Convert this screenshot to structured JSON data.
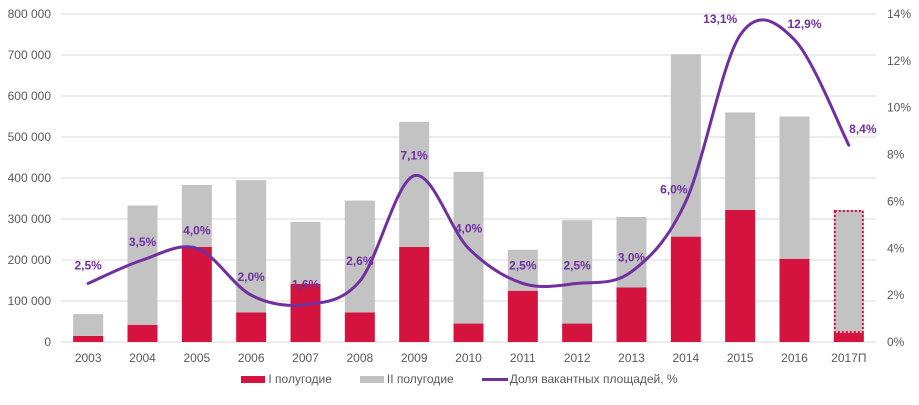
{
  "chart_data": {
    "type": "bar",
    "subtype": "stacked-bar-with-line-secondary-axis",
    "title": "",
    "xlabel": "",
    "ylabel": "",
    "y2label": "",
    "categories": [
      "2003",
      "2004",
      "2005",
      "2006",
      "2007",
      "2008",
      "2009",
      "2010",
      "2011",
      "2012",
      "2013",
      "2014",
      "2015",
      "2016",
      "2017П"
    ],
    "series": [
      {
        "name": "I полугодие",
        "type": "bar",
        "axis": "left",
        "color": "#d4133f",
        "values": [
          15000,
          42000,
          232000,
          72000,
          142000,
          72000,
          232000,
          45000,
          125000,
          45000,
          133000,
          257000,
          322000,
          203000,
          22000
        ]
      },
      {
        "name": "II полугодие",
        "type": "bar",
        "axis": "left",
        "color": "#c3c3c3",
        "values": [
          53000,
          291000,
          151000,
          323000,
          151000,
          273000,
          305000,
          370000,
          100000,
          252000,
          172000,
          445000,
          238000,
          347000,
          300000
        ]
      },
      {
        "name": "Доля вакантных площадей, %",
        "type": "line",
        "axis": "right",
        "color": "#7030a0",
        "values": [
          2.5,
          3.5,
          4.0,
          2.0,
          1.6,
          2.6,
          7.1,
          4.0,
          2.5,
          2.5,
          3.0,
          6.0,
          13.1,
          12.9,
          8.4
        ],
        "labels": [
          "2,5%",
          "3,5%",
          "4,0%",
          "2,0%",
          "1,6%",
          "2,6%",
          "7,1%",
          "4,0%",
          "2,5%",
          "2,5%",
          "3,0%",
          "6,0%",
          "13,1%",
          "12,9%",
          "8,4%"
        ]
      }
    ],
    "forecast_category": "2017П",
    "ylim": [
      0,
      800000
    ],
    "y_ticks": [
      0,
      100000,
      200000,
      300000,
      400000,
      500000,
      600000,
      700000,
      800000
    ],
    "y_tick_labels": [
      "0",
      "100 000",
      "200 000",
      "300 000",
      "400 000",
      "500 000",
      "600 000",
      "700 000",
      "800 000"
    ],
    "y2lim": [
      0,
      14
    ],
    "y2_ticks": [
      0,
      2,
      4,
      6,
      8,
      10,
      12,
      14
    ],
    "y2_tick_labels": [
      "0%",
      "2%",
      "4%",
      "6%",
      "8%",
      "10%",
      "12%",
      "14%"
    ],
    "grid": true,
    "legend": "bottom",
    "legend_entries": [
      "I полугодие",
      "II полугодие",
      "Доля вакантных площадей, %"
    ]
  }
}
